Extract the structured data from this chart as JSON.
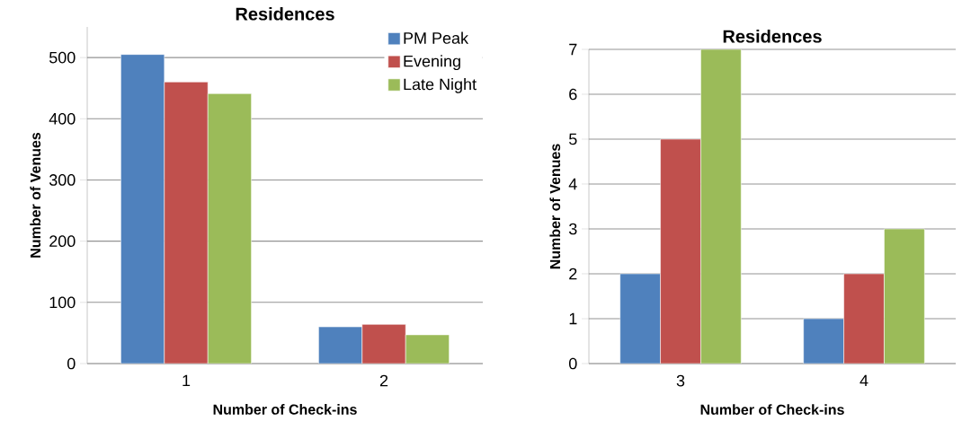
{
  "chart_data": [
    {
      "type": "bar",
      "title": "Residences",
      "xlabel": "Number of Check-ins",
      "ylabel": "Number of Venues",
      "categories": [
        "1",
        "2"
      ],
      "ylim": [
        0,
        550
      ],
      "yticks": [
        0,
        100,
        200,
        300,
        400,
        500
      ],
      "grid": "y",
      "legend": "top right",
      "series": [
        {
          "name": "PM Peak",
          "color": "#4f81bd",
          "values": [
            505,
            60
          ]
        },
        {
          "name": "Evening",
          "color": "#c0504d",
          "values": [
            460,
            64
          ]
        },
        {
          "name": "Late Night",
          "color": "#9bbb59",
          "values": [
            441,
            47
          ]
        }
      ]
    },
    {
      "type": "bar",
      "title": "Residences",
      "xlabel": "Number of Check-ins",
      "ylabel": "Number of Venues",
      "categories": [
        "3",
        "4"
      ],
      "ylim": [
        0,
        7
      ],
      "yticks": [
        0,
        1,
        2,
        3,
        4,
        5,
        6,
        7
      ],
      "grid": "y",
      "series": [
        {
          "color": "#4f81bd",
          "values": [
            2,
            1
          ]
        },
        {
          "color": "#c0504d",
          "values": [
            5,
            2
          ]
        },
        {
          "color": "#9bbb59",
          "values": [
            7,
            3
          ]
        }
      ]
    }
  ]
}
